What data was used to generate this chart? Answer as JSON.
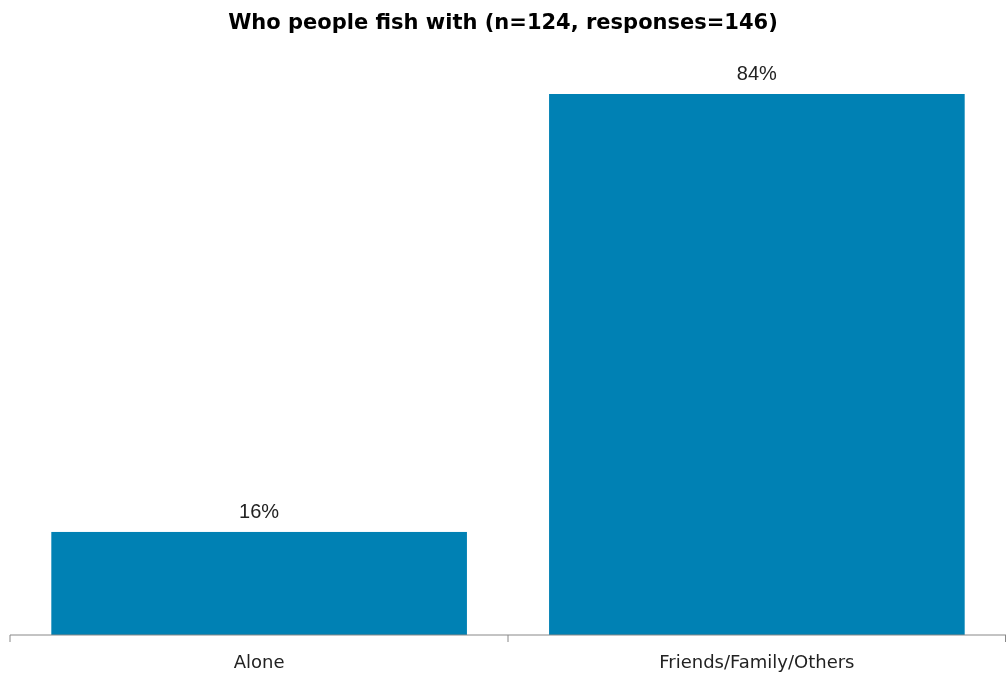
{
  "chart_data": {
    "type": "bar",
    "title": "Who people fish with (n=124, responses=146)",
    "categories": [
      "Alone",
      "Friends/Family/Others"
    ],
    "values": [
      16,
      84
    ],
    "value_labels": [
      "16%",
      "84%"
    ],
    "color": "#0081b4"
  }
}
